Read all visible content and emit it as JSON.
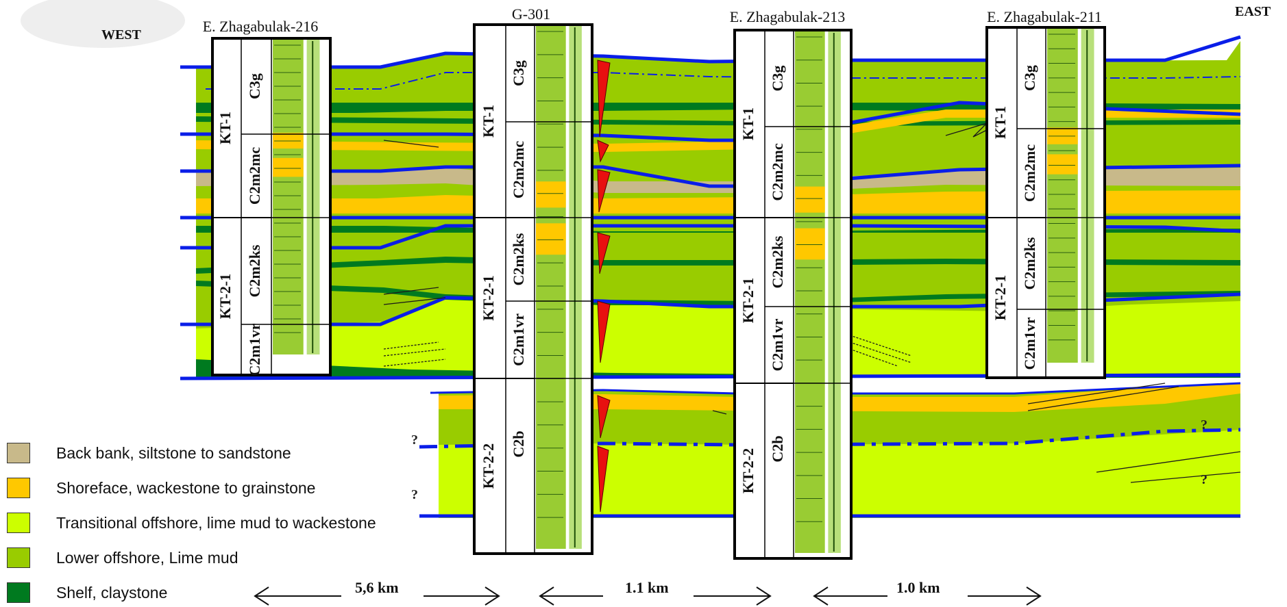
{
  "sides": {
    "west": "WEST",
    "east": "EAST"
  },
  "question_mark": "?",
  "wells": [
    {
      "name": "E. Zhagabulak-216",
      "units": [
        "KT-1",
        "KT-2-1"
      ],
      "zones": [
        "C3g",
        "C2m2mc",
        "C2m2ks",
        "C2m1vr"
      ]
    },
    {
      "name": "G-301",
      "units": [
        "KT-1",
        "KT-2-1",
        "KT-2-2"
      ],
      "zones": [
        "C3g",
        "C2m2mc",
        "C2m2ks",
        "C2m1vr",
        "C2b"
      ]
    },
    {
      "name": "E. Zhagabulak-213",
      "units": [
        "KT-1",
        "KT-2-1",
        "KT-2-2"
      ],
      "zones": [
        "C3g",
        "C2m2mc",
        "C2m2ks",
        "C2m1vr",
        "C2b"
      ]
    },
    {
      "name": "E. Zhagabulak-211",
      "units": [
        "KT-1",
        "KT-2-1"
      ],
      "zones": [
        "C3g",
        "C2m2mc",
        "C2m2ks",
        "C2m1vr"
      ]
    }
  ],
  "legend": [
    {
      "label": "Back bank, siltstone to sandstone",
      "color": "#c8b98a"
    },
    {
      "label": "Shoreface, wackestone to grainstone",
      "color": "#ffc800"
    },
    {
      "label": "Transitional offshore, lime mud to wackestone",
      "color": "#ccff00"
    },
    {
      "label": "Lower offshore, Lime mud",
      "color": "#99cc00"
    },
    {
      "label": "Shelf, claystone",
      "color": "#007a1f"
    }
  ],
  "distances": [
    "5,6 km",
    "1.1 km",
    "1.0 km"
  ],
  "colors": {
    "horizon": "#0a1ee8",
    "lower_offshore": "#99cc00",
    "transitional": "#ccff00",
    "shoreface": "#ffc800",
    "back_bank": "#c8b98a",
    "shelf": "#007a1f",
    "fault": "#e81010"
  }
}
